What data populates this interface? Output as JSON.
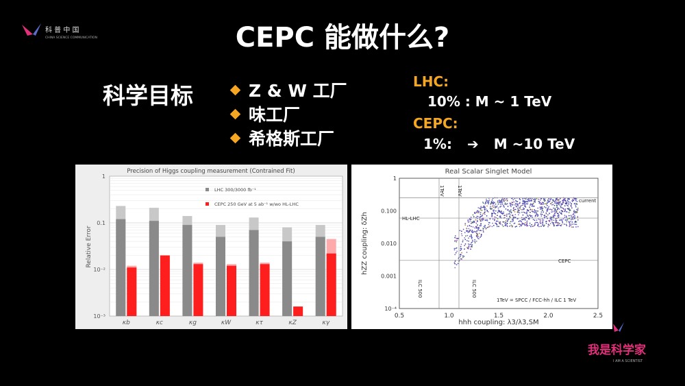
{
  "slide": {
    "title": "CEPC 能做什么?",
    "goal_label": "科学目标",
    "bullets": [
      "Z & W 工厂",
      "味工厂",
      "希格斯工厂"
    ],
    "lhc_label": "LHC:",
    "lhc_value": "10% :  M ~ 1 TeV",
    "cepc_label": "CEPC:",
    "cepc_value": "1%:",
    "cepc_arrow": "➔",
    "cepc_value2": "M ~10 TeV",
    "colors": {
      "bullet": "#f5a623",
      "accent": "#f5a623",
      "brand_pink": "#e0307a"
    }
  },
  "logos": {
    "top_left": {
      "text": "科 普 中 国",
      "sub": "CHINA SCIENCE COMMUNICATION"
    },
    "bottom_right": {
      "text": "我是科学家",
      "sub": "I AM A SCIENTIST"
    }
  },
  "chart_data": [
    {
      "type": "bar",
      "title": "Precision of Higgs coupling measurement (Contrained Fit)",
      "ylabel": "Relative Error",
      "yscale": "log",
      "ylim": [
        0.001,
        1
      ],
      "yticks": [
        "1",
        "0.1",
        "10⁻²",
        "10⁻³"
      ],
      "categories": [
        "κb",
        "κc",
        "κg",
        "κW",
        "κτ",
        "κZ",
        "κγ"
      ],
      "legend": [
        "LHC 300/3000 fb⁻¹",
        "CEPC 250 GeV at 5 ab⁻¹ w/wo HL-LHC"
      ],
      "series": [
        {
          "name": "LHC 300/3000 fb⁻¹",
          "values": [
            0.23,
            0.21,
            0.14,
            0.09,
            0.13,
            0.08,
            0.09
          ],
          "color": "#c8c8c8"
        },
        {
          "name": "LHC 300/3000 fb⁻¹",
          "values": [
            0.12,
            0.11,
            0.09,
            0.05,
            0.07,
            0.04,
            0.05
          ],
          "color": "#8a8a8a"
        },
        {
          "name": "CEPC 250 GeV at 5 ab⁻¹ w/wo HL-LHC",
          "values": [
            0.012,
            0.02,
            0.014,
            0.013,
            0.014,
            0.0016,
            0.045
          ],
          "color": "#ffaaaa"
        },
        {
          "name": "CEPC 250 GeV at 5 ab⁻¹ w/wo HL-LHC",
          "values": [
            0.011,
            0.02,
            0.013,
            0.012,
            0.013,
            0.0016,
            0.022
          ],
          "color": "#ff1e1e"
        }
      ]
    },
    {
      "type": "scatter",
      "title": "Real Scalar Singlet Model",
      "xlabel": "hhh coupling: λ3/λ3,SM",
      "ylabel": "hZZ coupling: δZh",
      "xlim": [
        0.5,
        2.5
      ],
      "ylim": [
        0.0001,
        1
      ],
      "yscale": "log",
      "xticks": [
        "0.5",
        "1.0",
        "1.5",
        "2.0",
        "2.5"
      ],
      "yticks": [
        "1",
        "0.100",
        "0.010",
        "0.001",
        "10⁻⁴"
      ],
      "annotations": [
        "current",
        "HL-LHC",
        "CEPC",
        "1TeV",
        "1TeV",
        "ILC 500",
        "ILC 500",
        "1TeV = SPCC / FCC-hh / ILC 1 TeV"
      ],
      "hlines": [
        {
          "label": "current",
          "y": 0.25
        },
        {
          "label": "HL-LHC",
          "y": 0.06
        },
        {
          "label": "CEPC",
          "y": 0.003
        }
      ],
      "vlines": [
        {
          "label": "1TeV",
          "x": 0.9
        },
        {
          "label": "1TeV",
          "x": 1.1
        }
      ]
    }
  ]
}
